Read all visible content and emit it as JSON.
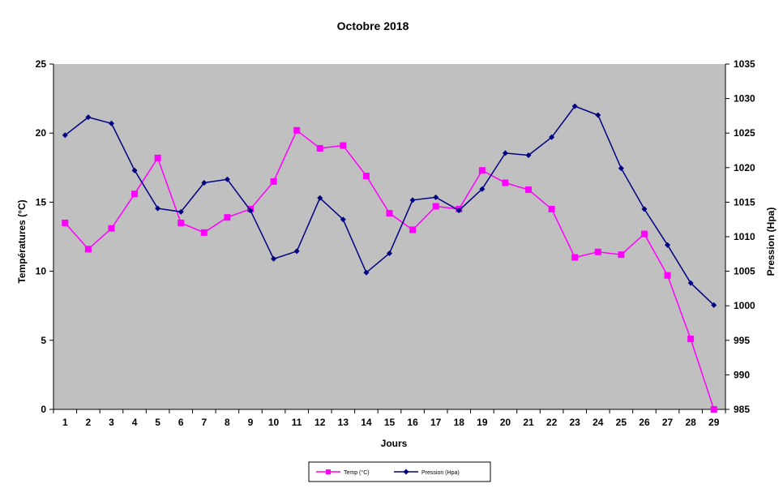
{
  "chart_data": {
    "type": "line",
    "title": "Octobre 2018",
    "xlabel": "Jours",
    "ylabel_left": "Températures  (°C)",
    "ylabel_right": "Pression (Hpa)",
    "categories": [
      "1",
      "2",
      "3",
      "4",
      "5",
      "6",
      "7",
      "8",
      "9",
      "10",
      "11",
      "12",
      "13",
      "14",
      "15",
      "16",
      "17",
      "18",
      "19",
      "20",
      "21",
      "22",
      "23",
      "24",
      "25",
      "26",
      "27",
      "28",
      "29"
    ],
    "y_left": {
      "min": 0,
      "max": 25,
      "ticks": [
        0,
        5,
        10,
        15,
        20,
        25
      ]
    },
    "y_right": {
      "min": 985,
      "max": 1035,
      "ticks": [
        985,
        990,
        995,
        1000,
        1005,
        1010,
        1015,
        1020,
        1025,
        1030,
        1035
      ]
    },
    "plot_background": "#c0c0c0",
    "grid": false,
    "legend_position": "bottom",
    "series": [
      {
        "name": "Temp (°C)",
        "axis": "left",
        "color": "#ff00ff",
        "marker": "square",
        "values": [
          13.5,
          11.6,
          13.1,
          15.6,
          18.2,
          13.5,
          12.8,
          13.9,
          14.5,
          16.5,
          20.2,
          18.9,
          19.1,
          16.9,
          14.2,
          13.0,
          14.7,
          14.5,
          17.3,
          16.4,
          15.9,
          14.5,
          11.0,
          11.4,
          11.2,
          12.7,
          9.7,
          5.1,
          0.0
        ]
      },
      {
        "name": "Pression (Hpa)",
        "axis": "right",
        "color": "#000080",
        "marker": "diamond",
        "values": [
          1024.7,
          1027.3,
          1026.4,
          1019.6,
          1014.1,
          1013.6,
          1017.8,
          1018.3,
          1013.8,
          1006.8,
          1007.9,
          1015.6,
          1012.5,
          1004.8,
          1007.6,
          1015.3,
          1015.7,
          1013.8,
          1016.9,
          1022.1,
          1021.8,
          1024.4,
          1028.9,
          1027.6,
          1019.9,
          1014.0,
          1008.8,
          1003.3,
          1000.1
        ]
      }
    ]
  }
}
